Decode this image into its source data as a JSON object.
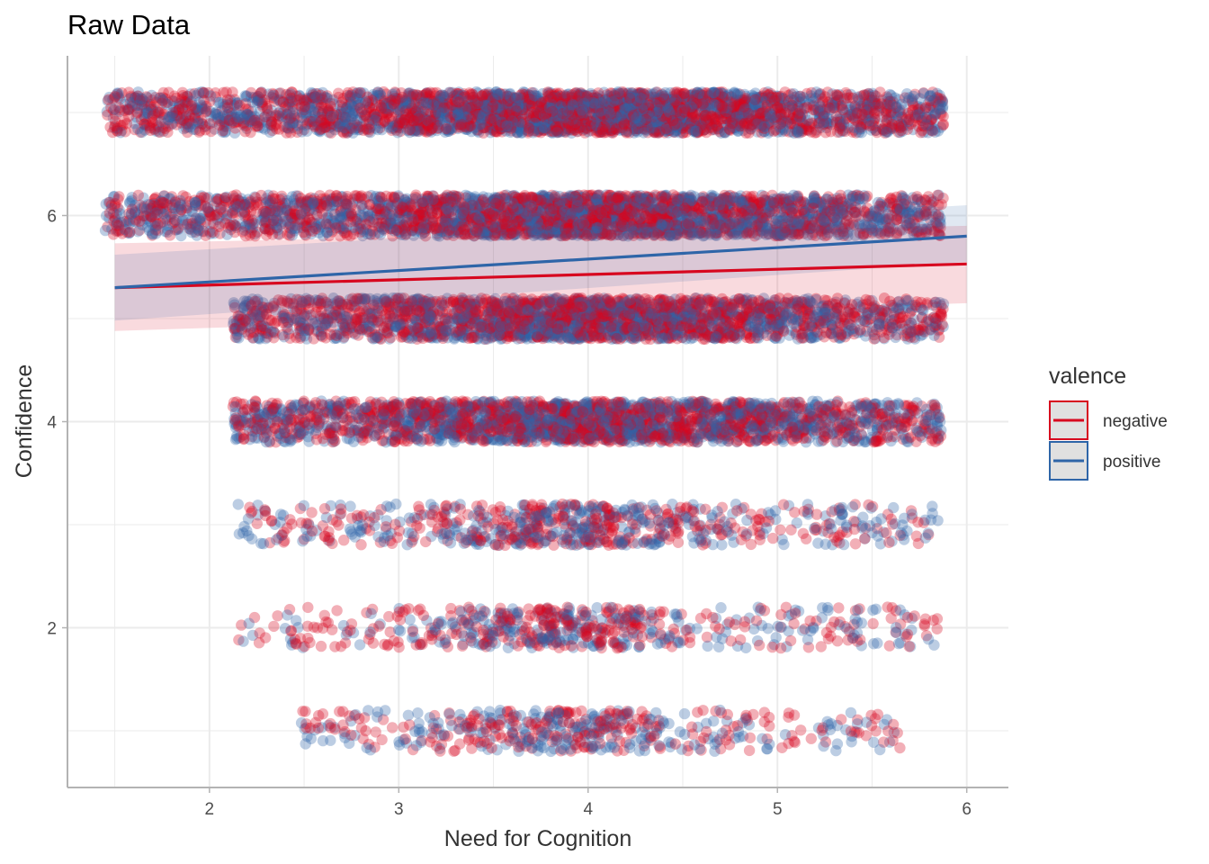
{
  "chart_data": {
    "type": "scatter",
    "title": "Raw Data",
    "xlabel": "Need for Cognition",
    "ylabel": "Confidence",
    "xlim": [
      1.25,
      6.22
    ],
    "ylim": [
      0.45,
      7.55
    ],
    "x_ticks": [
      2,
      3,
      4,
      5,
      6
    ],
    "y_ticks": [
      2,
      4,
      6
    ],
    "grid": true,
    "jitter": {
      "x": 0.15,
      "y": 0.2
    },
    "legend": {
      "title": "valence",
      "position": "right"
    },
    "series": [
      {
        "name": "negative",
        "color": "#D7071F",
        "fit": {
          "x": [
            1.5,
            6.0
          ],
          "y": [
            5.3,
            5.53
          ],
          "ci_lower": [
            4.88,
            5.15
          ],
          "ci_upper": [
            5.73,
            5.9
          ]
        }
      },
      {
        "name": "positive",
        "color": "#2E65A8",
        "fit": {
          "x": [
            1.5,
            6.0
          ],
          "y": [
            5.3,
            5.8
          ],
          "ci_lower": [
            4.98,
            5.55
          ],
          "ci_upper": [
            5.62,
            6.1
          ]
        }
      }
    ],
    "levels": [
      {
        "y": 1,
        "x_range": [
          2.45,
          5.65
        ],
        "center": 3.9,
        "spread": 0.55,
        "count": 520
      },
      {
        "y": 2,
        "x_range": [
          2.15,
          5.85
        ],
        "center": 3.85,
        "spread": 0.6,
        "count": 620
      },
      {
        "y": 3,
        "x_range": [
          2.15,
          5.85
        ],
        "center": 3.9,
        "spread": 0.7,
        "count": 760
      },
      {
        "y": 4,
        "x_range": [
          2.12,
          5.88
        ],
        "center": 4.0,
        "spread": 1.1,
        "count": 2600
      },
      {
        "y": 5,
        "x_range": [
          2.12,
          5.88
        ],
        "center": 4.0,
        "spread": 1.1,
        "count": 2700
      },
      {
        "y": 6,
        "x_range": [
          1.45,
          5.88
        ],
        "center": 4.0,
        "spread": 1.2,
        "count": 3300
      },
      {
        "y": 7,
        "x_range": [
          1.45,
          5.88
        ],
        "center": 4.0,
        "spread": 1.2,
        "count": 3600
      }
    ]
  }
}
